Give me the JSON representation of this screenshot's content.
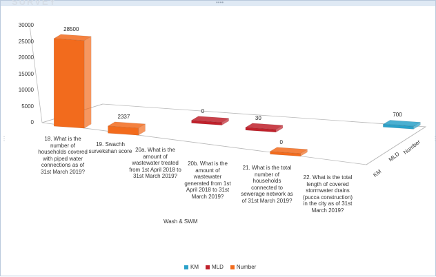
{
  "window": {
    "title_fragment": "SURVEY"
  },
  "chart_data": {
    "type": "bar",
    "title": "",
    "xlabel": "Wash & SWM",
    "ylabel": "",
    "ylim": [
      0,
      30000
    ],
    "yticks": [
      "30000",
      "25000",
      "20000",
      "15000",
      "10000",
      "5000",
      "0"
    ],
    "depth_labels": [
      "KM",
      "MLD",
      "Number"
    ],
    "categories": [
      "18. What is the number of households covered with piped water connections as of 31st March 2019?",
      "19. Swachh survekshan score",
      "20a. What is the amount of wastewater treated from 1st April 2018 to 31st March 2019?",
      "20b. What is the amount of wastewater generated from 1st April 2018 to 31st March 2019?",
      "21. What is the total number of households connected to sewerage network as of 31st March 2019?",
      "22. What is the total length of covered stormwater drains (pucca construction) in the city as of 31st March 2019?"
    ],
    "series": [
      {
        "name": "KM",
        "color": "#2aa1c9",
        "values": [
          null,
          null,
          null,
          null,
          null,
          700
        ]
      },
      {
        "name": "MLD",
        "color": "#c0212b",
        "values": [
          null,
          null,
          0,
          30,
          null,
          null
        ]
      },
      {
        "name": "Number",
        "color": "#f26b1d",
        "values": [
          28500,
          2337,
          null,
          null,
          0,
          null
        ]
      }
    ],
    "data_labels": [
      {
        "series": "Number",
        "category": 0,
        "text": "28500"
      },
      {
        "series": "Number",
        "category": 1,
        "text": "2337"
      },
      {
        "series": "MLD",
        "category": 2,
        "text": "0"
      },
      {
        "series": "MLD",
        "category": 3,
        "text": "30"
      },
      {
        "series": "Number",
        "category": 4,
        "text": "0"
      },
      {
        "series": "KM",
        "category": 5,
        "text": "700"
      }
    ],
    "grid": false,
    "legend_position": "bottom"
  }
}
